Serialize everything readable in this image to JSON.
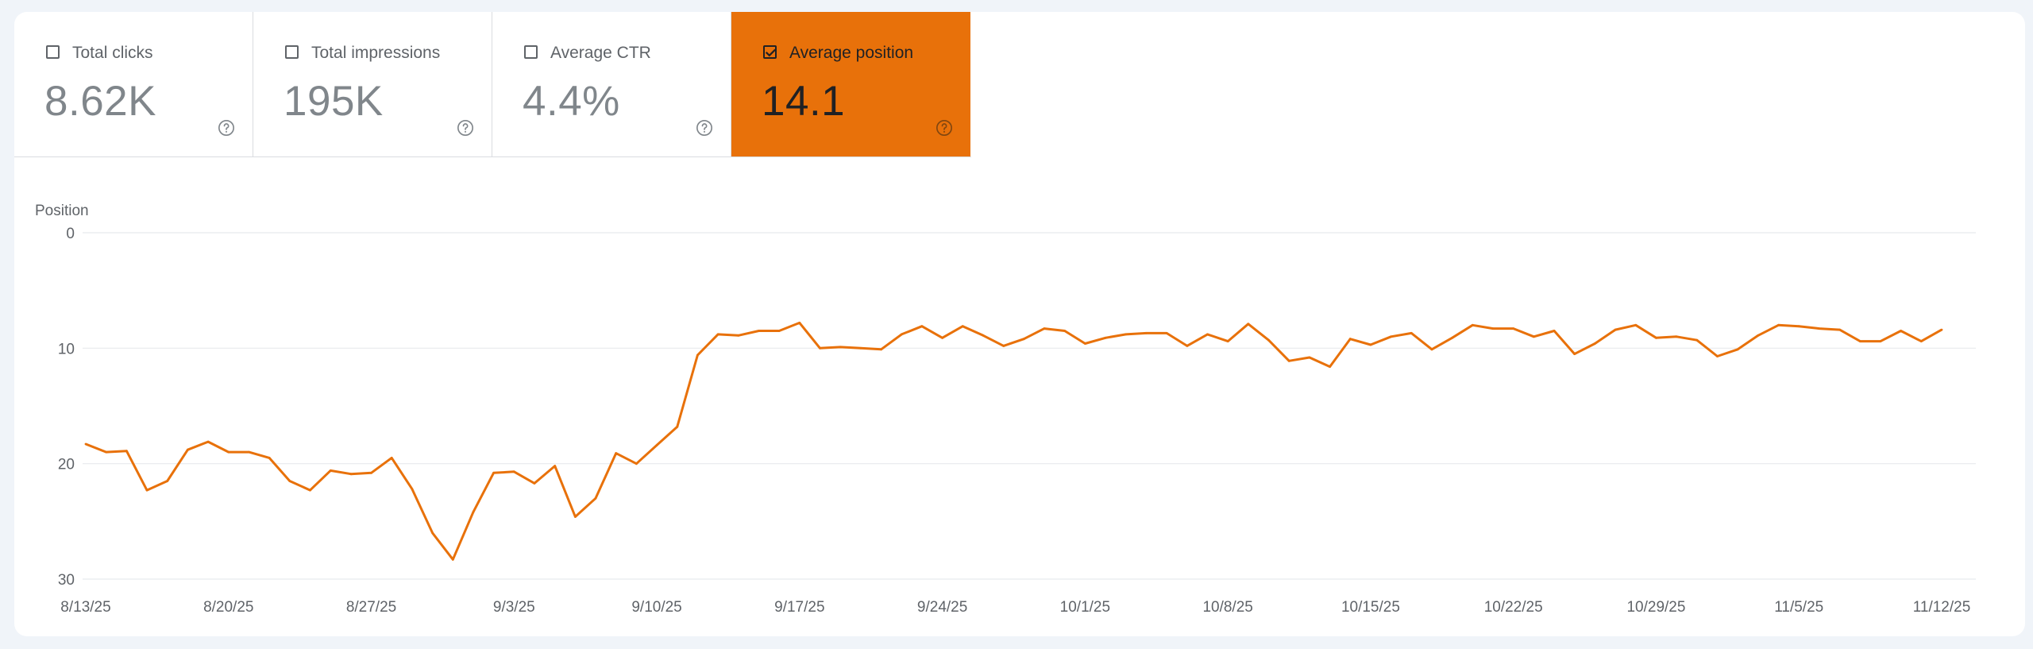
{
  "metrics": [
    {
      "label": "Total clicks",
      "value": "8.62K",
      "checked": false
    },
    {
      "label": "Total impressions",
      "value": "195K",
      "checked": false
    },
    {
      "label": "Average CTR",
      "value": "4.4%",
      "checked": false
    },
    {
      "label": "Average position",
      "value": "14.1",
      "checked": true
    }
  ],
  "help_icon": "help-circle-icon",
  "colors": {
    "accent": "#e8710a",
    "line": "#e8710a",
    "grid": "#e8eaed",
    "axis_text": "#5f6368"
  },
  "chart_data": {
    "type": "line",
    "ylabel": "Position",
    "y_reversed": true,
    "ylim": [
      0,
      30
    ],
    "y_ticks": [
      "0",
      "10",
      "20",
      "30"
    ],
    "x_tick_labels": [
      "8/13/25",
      "8/20/25",
      "8/27/25",
      "9/3/25",
      "9/10/25",
      "9/17/25",
      "9/24/25",
      "10/1/25",
      "10/8/25",
      "10/15/25",
      "10/22/25",
      "10/29/25",
      "11/5/25",
      "11/12/25"
    ],
    "grid": true,
    "series": [
      {
        "values": [
          18.3,
          19.0,
          18.9,
          22.3,
          21.5,
          18.8,
          18.1,
          19.0,
          19.0,
          19.5,
          21.5,
          22.3,
          20.6,
          20.9,
          20.8,
          19.5,
          22.2,
          26.0,
          28.3,
          24.2,
          20.8,
          20.7,
          21.7,
          20.2,
          24.6,
          23.0,
          19.1,
          20.0,
          18.4,
          16.8,
          10.6,
          8.8,
          8.9,
          8.5,
          8.5,
          7.8,
          10.0,
          9.9,
          10.0,
          10.1,
          8.8,
          8.1,
          9.1,
          8.1,
          8.9,
          9.8,
          9.2,
          8.3,
          8.5,
          9.6,
          9.1,
          8.8,
          8.7,
          8.7,
          9.8,
          8.8,
          9.4,
          7.9,
          9.3,
          11.1,
          10.8,
          11.6,
          9.2,
          9.7,
          9.0,
          8.7,
          10.1,
          9.1,
          8.0,
          8.3,
          8.3,
          9.0,
          8.5,
          10.5,
          9.6,
          8.4,
          8.0,
          9.1,
          9.0,
          9.3,
          10.7,
          10.1,
          8.9,
          8.0,
          8.1,
          8.3,
          8.4,
          9.4,
          9.4,
          8.5,
          9.4,
          8.4
        ]
      }
    ]
  }
}
